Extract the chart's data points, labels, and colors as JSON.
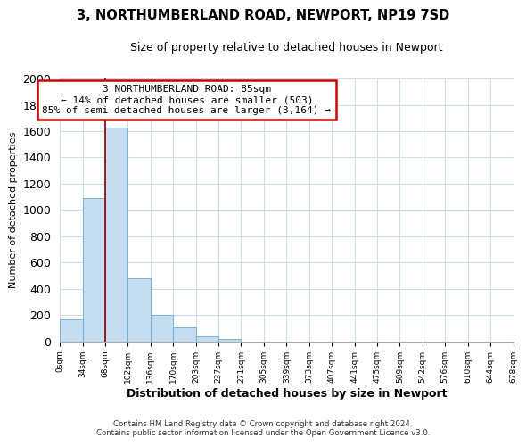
{
  "title": "3, NORTHUMBERLAND ROAD, NEWPORT, NP19 7SD",
  "subtitle": "Size of property relative to detached houses in Newport",
  "xlabel": "Distribution of detached houses by size in Newport",
  "ylabel": "Number of detached properties",
  "bar_color": "#c5ddf0",
  "bar_edge_color": "#6aaed6",
  "background_color": "#ffffff",
  "grid_color": "#d0dce8",
  "annotation_box_color": "#ffffff",
  "annotation_box_edge": "#cc0000",
  "marker_line_color": "#990000",
  "bin_labels": [
    "0sqm",
    "34sqm",
    "68sqm",
    "102sqm",
    "136sqm",
    "170sqm",
    "203sqm",
    "237sqm",
    "271sqm",
    "305sqm",
    "339sqm",
    "373sqm",
    "407sqm",
    "441sqm",
    "475sqm",
    "509sqm",
    "542sqm",
    "576sqm",
    "610sqm",
    "644sqm",
    "678sqm"
  ],
  "bar_heights": [
    170,
    1090,
    1630,
    480,
    200,
    105,
    40,
    20,
    0,
    0,
    0,
    0,
    0,
    0,
    0,
    0,
    0,
    0,
    0,
    0
  ],
  "ylim": [
    0,
    2000
  ],
  "yticks": [
    0,
    200,
    400,
    600,
    800,
    1000,
    1200,
    1400,
    1600,
    1800,
    2000
  ],
  "annotation_text_line1": "3 NORTHUMBERLAND ROAD: 85sqm",
  "annotation_text_line2": "← 14% of detached houses are smaller (503)",
  "annotation_text_line3": "85% of semi-detached houses are larger (3,164) →",
  "footer_line1": "Contains HM Land Registry data © Crown copyright and database right 2024.",
  "footer_line2": "Contains public sector information licensed under the Open Government Licence v3.0."
}
